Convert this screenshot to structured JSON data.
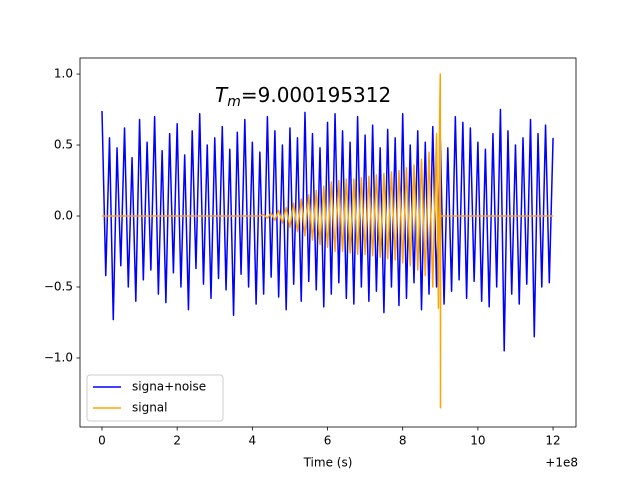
{
  "chart_data": {
    "type": "line",
    "annotation": {
      "symbol": "T",
      "subscript": "m",
      "text": "=9.000195312"
    },
    "xlabel": "Time (s)",
    "x_offset_label": "+1e8",
    "xlim": [
      -0.585,
      12.61
    ],
    "ylim": [
      -1.486,
      1.113
    ],
    "xticks": [
      0,
      2,
      4,
      6,
      8,
      10,
      12
    ],
    "yticks": [
      {
        "value": -1.0,
        "label": "−1.0"
      },
      {
        "value": -0.5,
        "label": "−0.5"
      },
      {
        "value": 0.0,
        "label": "0.0"
      },
      {
        "value": 0.5,
        "label": "0.5"
      },
      {
        "value": 1.0,
        "label": "1.0"
      }
    ],
    "legend": "lower left",
    "series": [
      {
        "name": "signa+noise",
        "color": "#0000ff",
        "x": [
          0,
          0.1,
          0.2,
          0.3,
          0.4,
          0.5,
          0.6,
          0.7,
          0.8,
          0.9,
          1,
          1.1,
          1.2,
          1.3,
          1.4,
          1.5,
          1.6,
          1.7,
          1.8,
          1.9,
          2,
          2.1,
          2.2,
          2.3,
          2.4,
          2.5,
          2.6,
          2.7,
          2.8,
          2.9,
          3,
          3.1,
          3.2,
          3.3,
          3.4,
          3.5,
          3.6,
          3.7,
          3.8,
          3.9,
          4,
          4.1,
          4.2,
          4.3,
          4.4,
          4.5,
          4.6,
          4.7,
          4.8,
          4.9,
          5,
          5.1,
          5.2,
          5.3,
          5.4,
          5.5,
          5.6,
          5.7,
          5.8,
          5.9,
          6,
          6.1,
          6.2,
          6.3,
          6.4,
          6.5,
          6.6,
          6.7,
          6.8,
          6.9,
          7,
          7.1,
          7.2,
          7.3,
          7.4,
          7.5,
          7.6,
          7.7,
          7.8,
          7.9,
          8,
          8.1,
          8.2,
          8.3,
          8.4,
          8.5,
          8.6,
          8.7,
          8.8,
          8.9,
          9,
          9.1,
          9.2,
          9.3,
          9.4,
          9.5,
          9.6,
          9.7,
          9.8,
          9.9,
          10,
          10.1,
          10.2,
          10.3,
          10.4,
          10.5,
          10.6,
          10.7,
          10.8,
          10.9,
          11,
          11.1,
          11.2,
          11.3,
          11.4,
          11.5,
          11.6,
          11.7,
          11.8,
          11.9,
          12
        ],
        "values": [
          0.74,
          -0.42,
          0.55,
          -0.73,
          0.48,
          -0.35,
          0.62,
          -0.5,
          0.41,
          -0.6,
          0.68,
          -0.45,
          0.52,
          -0.38,
          0.7,
          -0.55,
          0.46,
          -0.61,
          0.58,
          -0.4,
          0.65,
          -0.5,
          0.43,
          -0.66,
          0.6,
          -0.37,
          0.72,
          -0.48,
          0.5,
          -0.58,
          0.55,
          -0.44,
          0.63,
          -0.52,
          0.47,
          -0.7,
          0.59,
          -0.41,
          0.68,
          -0.5,
          0.52,
          -0.62,
          0.45,
          -0.55,
          0.7,
          -0.43,
          0.6,
          -0.57,
          0.5,
          -0.66,
          0.62,
          -0.48,
          0.55,
          -0.6,
          0.73,
          -0.46,
          0.58,
          -0.52,
          0.48,
          -0.64,
          0.66,
          -0.55,
          0.72,
          -0.47,
          0.6,
          -0.58,
          0.52,
          -0.62,
          0.7,
          -0.5,
          0.57,
          -0.6,
          0.64,
          -0.53,
          0.48,
          -0.68,
          0.61,
          -0.5,
          0.55,
          -0.63,
          0.72,
          -0.58,
          0.5,
          -0.47,
          0.6,
          -0.66,
          0.52,
          -0.55,
          0.63,
          -0.5,
          0.55,
          -0.62,
          0.48,
          -0.53,
          0.7,
          -0.45,
          0.66,
          -0.58,
          0.62,
          -0.46,
          0.52,
          -0.6,
          0.47,
          -0.64,
          0.58,
          -0.5,
          0.75,
          -0.95,
          0.6,
          -0.55,
          0.5,
          -0.62,
          0.55,
          -0.48,
          0.68,
          -0.85,
          0.58,
          -0.5,
          0.64,
          -0.47,
          0.55
        ]
      },
      {
        "name": "signal",
        "color": "#ffa500",
        "x": [
          0,
          4.2,
          4.3,
          4.4,
          4.5,
          4.6,
          4.7,
          4.8,
          4.9,
          5,
          5.1,
          5.2,
          5.3,
          5.4,
          5.5,
          5.6,
          5.7,
          5.8,
          5.9,
          6,
          6.1,
          6.2,
          6.3,
          6.4,
          6.5,
          6.6,
          6.7,
          6.8,
          6.9,
          7,
          7.1,
          7.2,
          7.3,
          7.4,
          7.5,
          7.6,
          7.7,
          7.8,
          7.9,
          8,
          8.1,
          8.2,
          8.3,
          8.4,
          8.5,
          8.6,
          8.7,
          8.8,
          8.9,
          8.95,
          8.98,
          9.0,
          9.005,
          9.01,
          12
        ],
        "values": [
          0,
          0,
          0.01,
          -0.015,
          0.02,
          -0.03,
          0.04,
          -0.05,
          0.06,
          -0.08,
          0.09,
          -0.11,
          0.12,
          -0.14,
          0.15,
          -0.17,
          0.18,
          -0.2,
          0.21,
          -0.22,
          0.24,
          -0.25,
          0.25,
          -0.25,
          0.26,
          -0.26,
          0.26,
          -0.27,
          0.27,
          -0.27,
          0.28,
          -0.28,
          0.29,
          -0.29,
          0.3,
          -0.3,
          0.31,
          -0.31,
          0.32,
          -0.33,
          0.34,
          -0.35,
          0.36,
          -0.38,
          0.4,
          -0.42,
          0.45,
          -0.5,
          0.58,
          -0.65,
          0.66,
          1.0,
          -1.35,
          0,
          0
        ]
      }
    ]
  }
}
